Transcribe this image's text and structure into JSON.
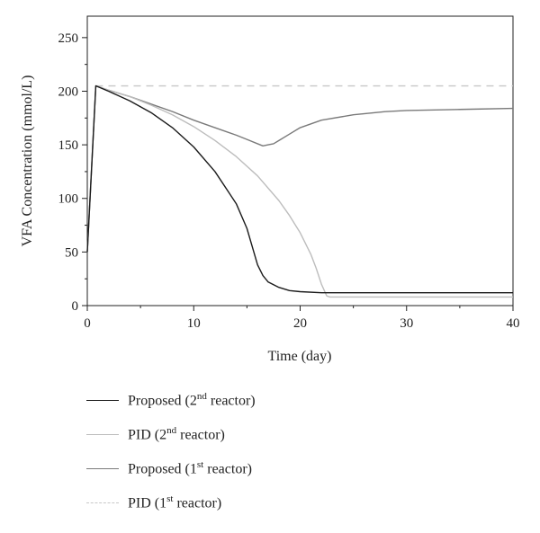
{
  "chart_data": {
    "type": "line",
    "xlabel": "Time (day)",
    "ylabel": "VFA Concentration (mmol/L)",
    "xlim": [
      0,
      40
    ],
    "ylim": [
      0,
      270
    ],
    "xticks": [
      "0",
      "10",
      "20",
      "30",
      "40"
    ],
    "yticks": [
      "0",
      "50",
      "100",
      "150",
      "200",
      "250"
    ],
    "grid": false,
    "legend_placement": "below",
    "series": [
      {
        "name": "Proposed (2nd reactor)",
        "name_base": "Proposed (2",
        "name_sup": "nd",
        "name_tail": " reactor)",
        "color": "#1a1a1a",
        "dash": "none",
        "x": [
          0,
          0.8,
          2,
          4,
          6,
          8,
          10,
          12,
          14,
          15,
          15.5,
          16,
          16.5,
          17,
          18,
          19,
          20,
          22,
          25,
          30,
          35,
          40
        ],
        "y": [
          50,
          205,
          200,
          191,
          180,
          166,
          148,
          125,
          95,
          72,
          55,
          38,
          28,
          22,
          17,
          14,
          13,
          12,
          12,
          12,
          12,
          12
        ]
      },
      {
        "name": "PID (2nd reactor)",
        "name_base": "PID (2",
        "name_sup": "nd",
        "name_tail": " reactor)",
        "color": "#bdbdbd",
        "dash": "none",
        "x": [
          0,
          0.8,
          2,
          4,
          6,
          8,
          10,
          12,
          14,
          16,
          18,
          19,
          20,
          21,
          21.5,
          22,
          22.5,
          22.8,
          25,
          30,
          35,
          40
        ],
        "y": [
          50,
          205,
          201,
          195,
          187,
          178,
          167,
          154,
          139,
          121,
          98,
          84,
          68,
          48,
          35,
          20,
          9,
          8,
          8,
          8,
          8,
          8
        ]
      },
      {
        "name": "Proposed (1st reactor)",
        "name_base": "Proposed (1",
        "name_sup": "st",
        "name_tail": " reactor)",
        "color": "#7a7a7a",
        "dash": "none",
        "x": [
          0,
          0.8,
          2,
          4,
          6,
          8,
          10,
          12,
          14,
          15,
          16,
          16.5,
          17,
          17.5,
          18,
          19,
          20,
          22,
          25,
          28,
          30,
          35,
          40
        ],
        "y": [
          50,
          205,
          201,
          195,
          188,
          181,
          173,
          166,
          159,
          155,
          151,
          149,
          150,
          151,
          154,
          160,
          166,
          173,
          178,
          181,
          182,
          183,
          184
        ]
      },
      {
        "name": "PID (1st reactor)",
        "name_base": "PID (1",
        "name_sup": "st",
        "name_tail": " reactor)",
        "color": "#c8c8c8",
        "dash": "8,6",
        "x": [
          0.8,
          40
        ],
        "y": [
          205,
          205
        ]
      }
    ]
  }
}
